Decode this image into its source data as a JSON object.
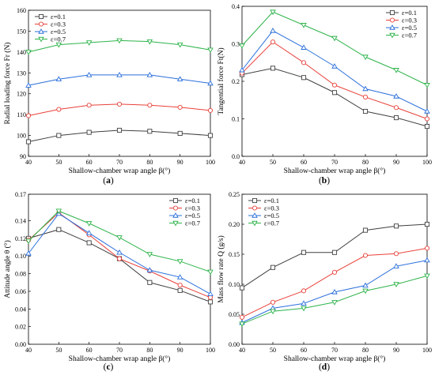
{
  "chart_data": [
    {
      "id": "a",
      "panel_label": "a",
      "type": "line",
      "x": [
        40,
        50,
        60,
        70,
        80,
        90,
        100
      ],
      "xlim": [
        40,
        100
      ],
      "xticks": [
        "40",
        "50",
        "60",
        "70",
        "80",
        "90",
        "100"
      ],
      "xlabel": "Shallow-chamber wrap angle β(°)",
      "ylabel": "Radial loading force Fr (N)",
      "ylim": [
        90,
        160
      ],
      "yticks": [
        "90",
        "100",
        "110",
        "120",
        "130",
        "140",
        "150",
        "160"
      ],
      "legend_position": "top-left",
      "series": [
        {
          "name": "ε=0.1",
          "color": "#404040",
          "marker": "square",
          "values": [
            97,
            100,
            101.5,
            102.5,
            102,
            101,
            100
          ]
        },
        {
          "name": "ε=0.3",
          "color": "#e8413a",
          "marker": "circle",
          "values": [
            109.5,
            112.5,
            114.5,
            115,
            114.5,
            113.5,
            112
          ]
        },
        {
          "name": "ε=0.5",
          "color": "#2a6fdb",
          "marker": "triangle-up",
          "values": [
            124,
            127,
            129,
            129,
            129,
            127,
            125
          ]
        },
        {
          "name": "ε=0.7",
          "color": "#2db34a",
          "marker": "triangle-down",
          "values": [
            140,
            143.5,
            144.5,
            145.5,
            145,
            143.5,
            141
          ]
        }
      ]
    },
    {
      "id": "b",
      "panel_label": "b",
      "type": "line",
      "x": [
        40,
        50,
        60,
        70,
        80,
        90,
        100
      ],
      "xlim": [
        40,
        100
      ],
      "xticks": [
        "40",
        "50",
        "60",
        "70",
        "80",
        "90",
        "100"
      ],
      "xlabel": "Shallow-chamber wrap angle β(°)",
      "ylabel": "Tangential force Ft(N)",
      "ylim": [
        0,
        0.4
      ],
      "yticks": [
        "0.0",
        "0.1",
        "0.2",
        "0.3",
        "0.4"
      ],
      "legend_position": "top-right",
      "series": [
        {
          "name": "ε=0.1",
          "color": "#404040",
          "marker": "square",
          "values": [
            0.218,
            0.235,
            0.21,
            0.17,
            0.12,
            0.103,
            0.08
          ]
        },
        {
          "name": "ε=0.3",
          "color": "#e8413a",
          "marker": "circle",
          "values": [
            0.222,
            0.305,
            0.25,
            0.19,
            0.158,
            0.13,
            0.1
          ]
        },
        {
          "name": "ε=0.5",
          "color": "#2a6fdb",
          "marker": "triangle-up",
          "values": [
            0.23,
            0.335,
            0.29,
            0.24,
            0.18,
            0.16,
            0.12
          ]
        },
        {
          "name": "ε=0.7",
          "color": "#2db34a",
          "marker": "triangle-down",
          "values": [
            0.295,
            0.385,
            0.35,
            0.315,
            0.265,
            0.23,
            0.19
          ]
        }
      ]
    },
    {
      "id": "c",
      "panel_label": "c",
      "type": "line",
      "x": [
        40,
        50,
        60,
        70,
        80,
        90,
        100
      ],
      "xlim": [
        40,
        100
      ],
      "xticks": [
        "40",
        "50",
        "60",
        "70",
        "80",
        "90",
        "100"
      ],
      "xlabel": "Shallow-chamber wrap angle β(°)",
      "ylabel": "Attitude angle θ (°)",
      "ylim": [
        0,
        0.17
      ],
      "yticks": [
        "0.00",
        "0.02",
        "0.04",
        "0.06",
        "0.08",
        "0.10",
        "0.12",
        "0.14",
        "0.17"
      ],
      "ytick_values": [
        0,
        0.02,
        0.04,
        0.06,
        0.08,
        0.1,
        0.12,
        0.14,
        0.17
      ],
      "legend_position": "top-right",
      "series": [
        {
          "name": "ε=0.1",
          "color": "#404040",
          "marker": "square",
          "values": [
            0.12,
            0.13,
            0.115,
            0.097,
            0.07,
            0.061,
            0.048
          ]
        },
        {
          "name": "ε=0.3",
          "color": "#e8413a",
          "marker": "circle",
          "values": [
            0.118,
            0.149,
            0.124,
            0.097,
            0.083,
            0.067,
            0.053
          ]
        },
        {
          "name": "ε=0.5",
          "color": "#2a6fdb",
          "marker": "triangle-up",
          "values": [
            0.103,
            0.148,
            0.126,
            0.104,
            0.084,
            0.076,
            0.057
          ]
        },
        {
          "name": "ε=0.7",
          "color": "#2db34a",
          "marker": "triangle-down",
          "values": [
            0.117,
            0.151,
            0.137,
            0.121,
            0.102,
            0.094,
            0.082
          ]
        }
      ]
    },
    {
      "id": "d",
      "panel_label": "d",
      "type": "line",
      "x": [
        40,
        50,
        60,
        70,
        80,
        90,
        100
      ],
      "xlim": [
        40,
        100
      ],
      "xticks": [
        "40",
        "50",
        "60",
        "70",
        "80",
        "90",
        "100"
      ],
      "xlabel": "Shallow-chamber wrap angle β(°)",
      "ylabel": "Mass flow rate Q (g/s)",
      "ylim": [
        0,
        0.25
      ],
      "yticks": [
        "0.00",
        "0.05",
        "0.10",
        "0.15",
        "0.20",
        "0.25"
      ],
      "legend_position": "top-left",
      "series": [
        {
          "name": "ε=0.1",
          "color": "#404040",
          "marker": "square",
          "values": [
            0.094,
            0.128,
            0.153,
            0.153,
            0.19,
            0.197,
            0.2
          ]
        },
        {
          "name": "ε=0.3",
          "color": "#e8413a",
          "marker": "circle",
          "values": [
            0.045,
            0.07,
            0.089,
            0.12,
            0.148,
            0.151,
            0.16
          ]
        },
        {
          "name": "ε=0.5",
          "color": "#2a6fdb",
          "marker": "triangle-up",
          "values": [
            0.036,
            0.06,
            0.068,
            0.087,
            0.098,
            0.13,
            0.14
          ]
        },
        {
          "name": "ε=0.7",
          "color": "#2db34a",
          "marker": "triangle-down",
          "values": [
            0.034,
            0.055,
            0.06,
            0.07,
            0.089,
            0.1,
            0.114
          ]
        }
      ]
    }
  ]
}
